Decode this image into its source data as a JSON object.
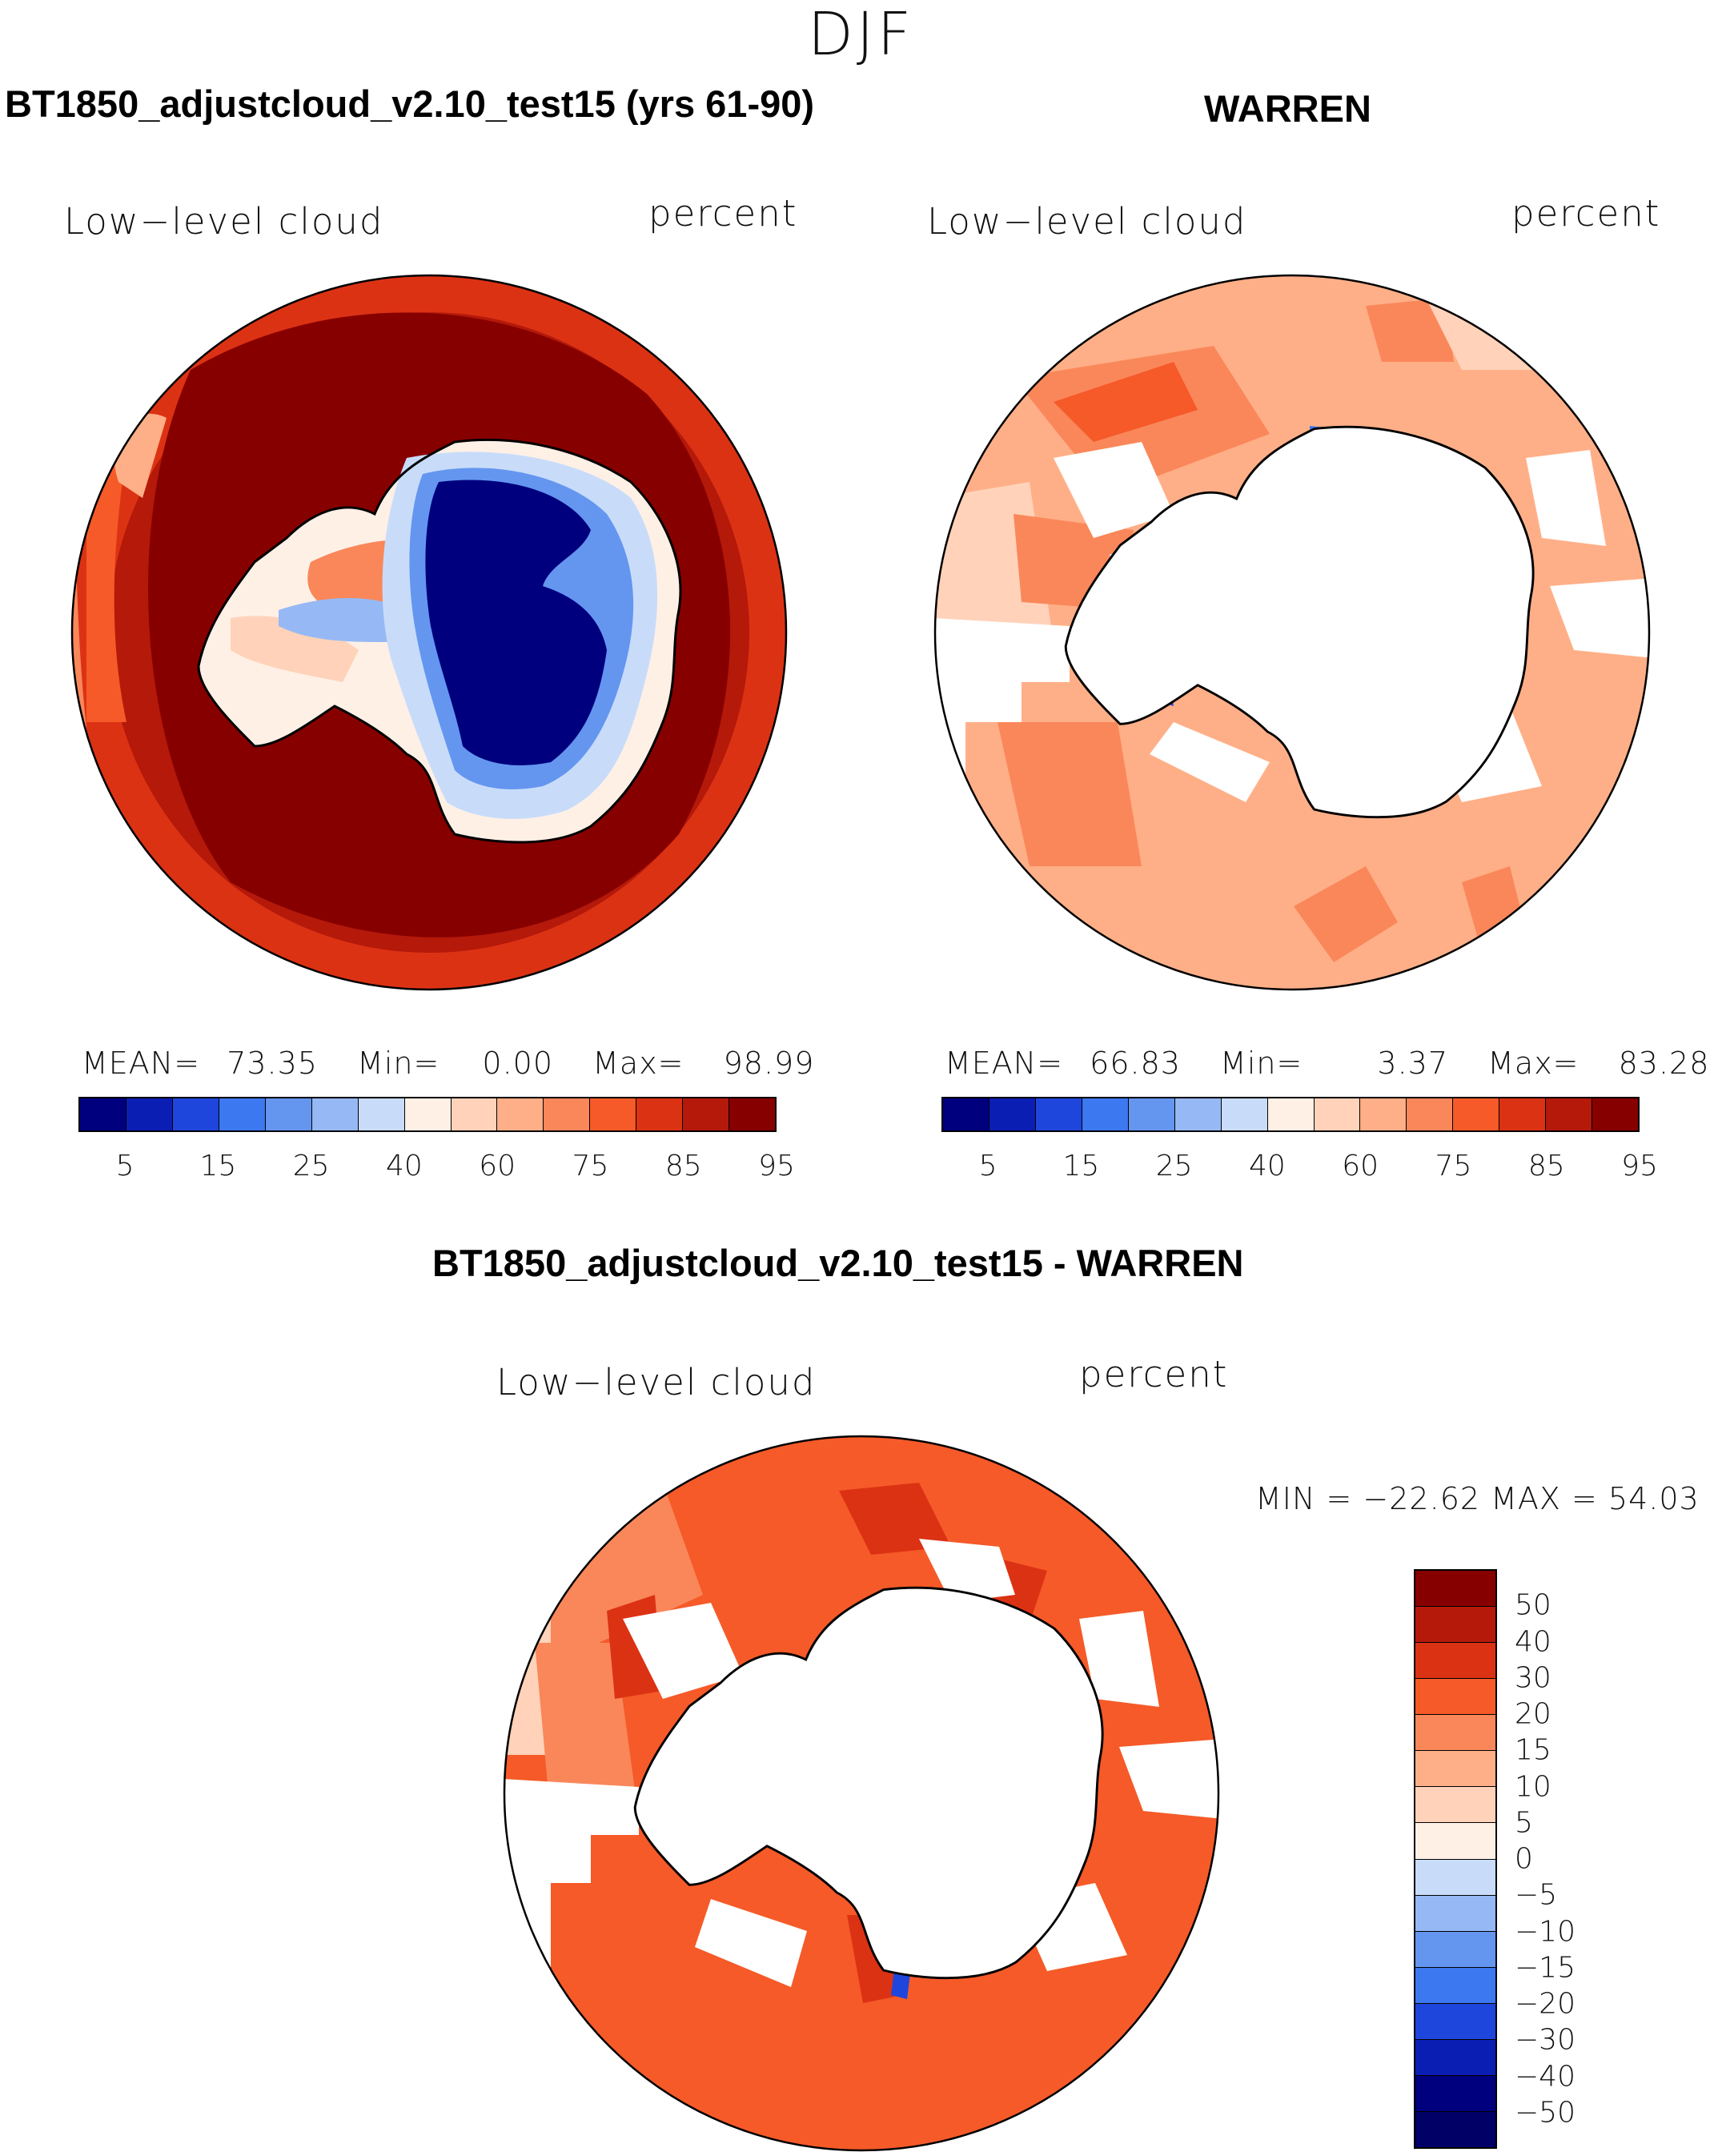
{
  "figure": {
    "season": "DJF",
    "panel1": {
      "title": "BT1850_adjustcloud_v2.10_test15 (yrs 61-90)",
      "variable": "Low−level cloud",
      "units": "percent",
      "stats": {
        "mean_label": "MEAN=",
        "mean": "73.35",
        "min_label": "Min=",
        "min": "0.00",
        "max_label": "Max=",
        "max": "98.99"
      }
    },
    "panel2": {
      "title": "WARREN",
      "variable": "Low−level cloud",
      "units": "percent",
      "stats": {
        "mean_label": "MEAN=",
        "mean": "66.83",
        "min_label": "Min=",
        "min": "3.37",
        "max_label": "Max=",
        "max": "83.28"
      }
    },
    "panel3": {
      "title": "BT1850_adjustcloud_v2.10_test15 - WARREN",
      "variable": "Low−level cloud",
      "units": "percent",
      "minmax": "MIN = −22.62 MAX =   54.03"
    }
  },
  "chart_data": [
    {
      "type": "heatmap",
      "projection": "south-polar-stereographic",
      "title": "BT1850_adjustcloud_v2.10_test15 (yrs 61-90)",
      "field": "Low-level cloud",
      "units": "percent",
      "mean": 73.35,
      "min": 0.0,
      "max": 98.99,
      "colorbar": {
        "orientation": "horizontal",
        "tick_labels": [
          "5",
          "15",
          "25",
          "40",
          "60",
          "75",
          "85",
          "95"
        ],
        "colors": [
          "#00007f",
          "#0a1eb4",
          "#1e46dc",
          "#3c78f0",
          "#6496f0",
          "#96b9f5",
          "#c8dcfa",
          "#fff0e6",
          "#ffd2b9",
          "#ffaf87",
          "#fa875a",
          "#f55a28",
          "#dc3214",
          "#b4190a",
          "#870000"
        ]
      }
    },
    {
      "type": "heatmap",
      "projection": "south-polar-stereographic",
      "title": "WARREN",
      "field": "Low-level cloud",
      "units": "percent",
      "mean": 66.83,
      "min": 3.37,
      "max": 83.28,
      "colorbar": {
        "orientation": "horizontal",
        "tick_labels": [
          "5",
          "15",
          "25",
          "40",
          "60",
          "75",
          "85",
          "95"
        ],
        "colors": [
          "#00007f",
          "#0a1eb4",
          "#1e46dc",
          "#3c78f0",
          "#6496f0",
          "#96b9f5",
          "#c8dcfa",
          "#fff0e6",
          "#ffd2b9",
          "#ffaf87",
          "#fa875a",
          "#f55a28",
          "#dc3214",
          "#b4190a",
          "#870000"
        ]
      }
    },
    {
      "type": "heatmap",
      "projection": "south-polar-stereographic",
      "title": "BT1850_adjustcloud_v2.10_test15 - WARREN",
      "field": "Low-level cloud",
      "units": "percent",
      "min": -22.62,
      "max": 54.03,
      "colorbar": {
        "orientation": "vertical",
        "tick_labels": [
          "50",
          "40",
          "30",
          "20",
          "15",
          "10",
          "5",
          "0",
          "−5",
          "−10",
          "−15",
          "−20",
          "−30",
          "−40",
          "−50"
        ],
        "colors": [
          "#870000",
          "#b4190a",
          "#dc3214",
          "#f55a28",
          "#fa875a",
          "#ffaf87",
          "#ffd2b9",
          "#fff0e6",
          "#c8dcfa",
          "#96b9f5",
          "#6496f0",
          "#3c78f0",
          "#1e46dc",
          "#0a1eb4",
          "#00007f",
          "#000066"
        ]
      }
    }
  ]
}
